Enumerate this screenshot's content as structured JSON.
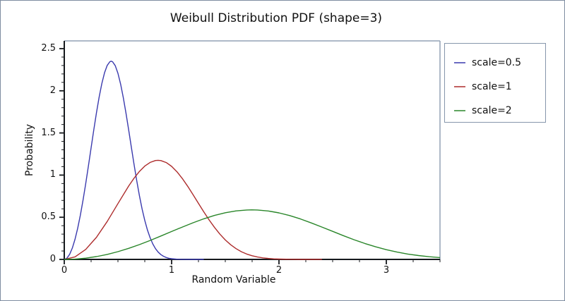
{
  "figure": {
    "title": "Weibull Distribution PDF (shape=3)",
    "xlabel": "Random Variable",
    "ylabel": "Probability",
    "background": "#ffffff",
    "outer_border_color": "#7e8da1",
    "frame_color": "#93a2b5",
    "axis_color": "#16191d"
  },
  "legend": {
    "position": "outside-right",
    "entries": [
      {
        "label": "scale=0.5",
        "color": "#3a3aae"
      },
      {
        "label": "scale=1",
        "color": "#ad2c2c"
      },
      {
        "label": "scale=2",
        "color": "#2a862a"
      }
    ]
  },
  "chart_data": {
    "type": "line",
    "title": "Weibull Distribution PDF (shape=3)",
    "xlabel": "Random Variable",
    "ylabel": "Probability",
    "xlim": [
      0,
      3.5
    ],
    "ylim": [
      0,
      2.592
    ],
    "grid": false,
    "legend_position": "outside-right",
    "x_major_ticks": [
      0,
      1,
      2,
      3
    ],
    "x_tick_labels": [
      "0",
      "1",
      "2",
      "3"
    ],
    "x_minor_step": 0.25,
    "y_major_ticks": [
      0,
      0.5,
      1,
      1.5,
      2,
      2.5
    ],
    "y_tick_labels": [
      "0",
      "0.5",
      "1",
      "1.5",
      "2",
      "2.5"
    ],
    "y_minor_step": 0.1,
    "distribution": {
      "family": "weibull",
      "shape": 3,
      "scales": [
        0.5,
        1,
        2
      ]
    },
    "series": [
      {
        "name": "scale=0.5",
        "color": "#3a3aae",
        "points": [
          [
            0,
            0
          ],
          [
            0.025,
            0.015
          ],
          [
            0.05,
            0.0599
          ],
          [
            0.075,
            0.1346
          ],
          [
            0.1,
            0.2381
          ],
          [
            0.125,
            0.3692
          ],
          [
            0.15,
            0.5256
          ],
          [
            0.175,
            0.7042
          ],
          [
            0.2,
            0.9005
          ],
          [
            0.225,
            1.1092
          ],
          [
            0.25,
            1.3237
          ],
          [
            0.275,
            1.5368
          ],
          [
            0.3,
            1.7404
          ],
          [
            0.325,
            1.9265
          ],
          [
            0.35,
            2.0863
          ],
          [
            0.375,
            2.2134
          ],
          [
            0.4,
            2.3014
          ],
          [
            0.425,
            2.3457
          ],
          [
            0.437,
            2.3516
          ],
          [
            0.45,
            2.3445
          ],
          [
            0.475,
            2.2975
          ],
          [
            0.5,
            2.2073
          ],
          [
            0.525,
            2.0786
          ],
          [
            0.55,
            1.9183
          ],
          [
            0.575,
            1.7339
          ],
          [
            0.6,
            1.5355
          ],
          [
            0.625,
            1.3295
          ],
          [
            0.65,
            1.127
          ],
          [
            0.675,
            0.934
          ],
          [
            0.7,
            0.7568
          ],
          [
            0.725,
            0.598
          ],
          [
            0.75,
            0.4621
          ],
          [
            0.775,
            0.3481
          ],
          [
            0.8,
            0.2555
          ],
          [
            0.825,
            0.1828
          ],
          [
            0.85,
            0.1273
          ],
          [
            0.875,
            0.0863
          ],
          [
            0.9,
            0.0571
          ],
          [
            0.925,
            0.0366
          ],
          [
            0.95,
            0.0228
          ],
          [
            0.975,
            0.0137
          ],
          [
            1,
            0.0081
          ],
          [
            1.05,
            0.0025
          ],
          [
            1.1,
            0.0007
          ],
          [
            1.2,
            0.0001
          ],
          [
            1.3,
            0
          ]
        ]
      },
      {
        "name": "scale=1",
        "color": "#ad2c2c",
        "points": [
          [
            0,
            0
          ],
          [
            0.1,
            0.03
          ],
          [
            0.2,
            0.119
          ],
          [
            0.3,
            0.2628
          ],
          [
            0.4,
            0.4502
          ],
          [
            0.5,
            0.6619
          ],
          [
            0.6,
            0.8702
          ],
          [
            0.65,
            0.963
          ],
          [
            0.7,
            1.0432
          ],
          [
            0.75,
            1.1067
          ],
          [
            0.8,
            1.1507
          ],
          [
            0.85,
            1.1728
          ],
          [
            0.874,
            1.1756
          ],
          [
            0.9,
            1.1722
          ],
          [
            0.95,
            1.1488
          ],
          [
            1,
            1.1036
          ],
          [
            1.05,
            1.0393
          ],
          [
            1.1,
            0.9592
          ],
          [
            1.15,
            0.8669
          ],
          [
            1.2,
            0.7678
          ],
          [
            1.25,
            0.6647
          ],
          [
            1.3,
            0.5635
          ],
          [
            1.35,
            0.467
          ],
          [
            1.4,
            0.3784
          ],
          [
            1.45,
            0.299
          ],
          [
            1.5,
            0.2311
          ],
          [
            1.55,
            0.174
          ],
          [
            1.6,
            0.1278
          ],
          [
            1.65,
            0.0914
          ],
          [
            1.7,
            0.0637
          ],
          [
            1.75,
            0.0431
          ],
          [
            1.8,
            0.0285
          ],
          [
            1.85,
            0.0183
          ],
          [
            1.9,
            0.0114
          ],
          [
            1.95,
            0.0069
          ],
          [
            2,
            0.004
          ],
          [
            2.1,
            0.0013
          ],
          [
            2.2,
            0.0004
          ],
          [
            2.3,
            0.0001
          ],
          [
            2.4,
            0
          ]
        ]
      },
      {
        "name": "scale=2",
        "color": "#2a862a",
        "points": [
          [
            0,
            0
          ],
          [
            0.1,
            0.0037
          ],
          [
            0.2,
            0.015
          ],
          [
            0.3,
            0.0336
          ],
          [
            0.4,
            0.0595
          ],
          [
            0.5,
            0.0923
          ],
          [
            0.6,
            0.1314
          ],
          [
            0.7,
            0.176
          ],
          [
            0.8,
            0.2251
          ],
          [
            0.9,
            0.2773
          ],
          [
            1,
            0.3309
          ],
          [
            1.1,
            0.3842
          ],
          [
            1.2,
            0.4351
          ],
          [
            1.3,
            0.4816
          ],
          [
            1.4,
            0.5216
          ],
          [
            1.5,
            0.5534
          ],
          [
            1.6,
            0.5754
          ],
          [
            1.7,
            0.5864
          ],
          [
            1.747,
            0.5878
          ],
          [
            1.8,
            0.5861
          ],
          [
            1.9,
            0.5744
          ],
          [
            2,
            0.5518
          ],
          [
            2.1,
            0.5197
          ],
          [
            2.2,
            0.4796
          ],
          [
            2.3,
            0.4335
          ],
          [
            2.4,
            0.3839
          ],
          [
            2.5,
            0.3324
          ],
          [
            2.6,
            0.2817
          ],
          [
            2.7,
            0.2335
          ],
          [
            2.8,
            0.1892
          ],
          [
            2.9,
            0.1495
          ],
          [
            3,
            0.1155
          ],
          [
            3.1,
            0.087
          ],
          [
            3.2,
            0.0639
          ],
          [
            3.3,
            0.0457
          ],
          [
            3.4,
            0.0318
          ],
          [
            3.5,
            0.0216
          ]
        ]
      }
    ]
  }
}
